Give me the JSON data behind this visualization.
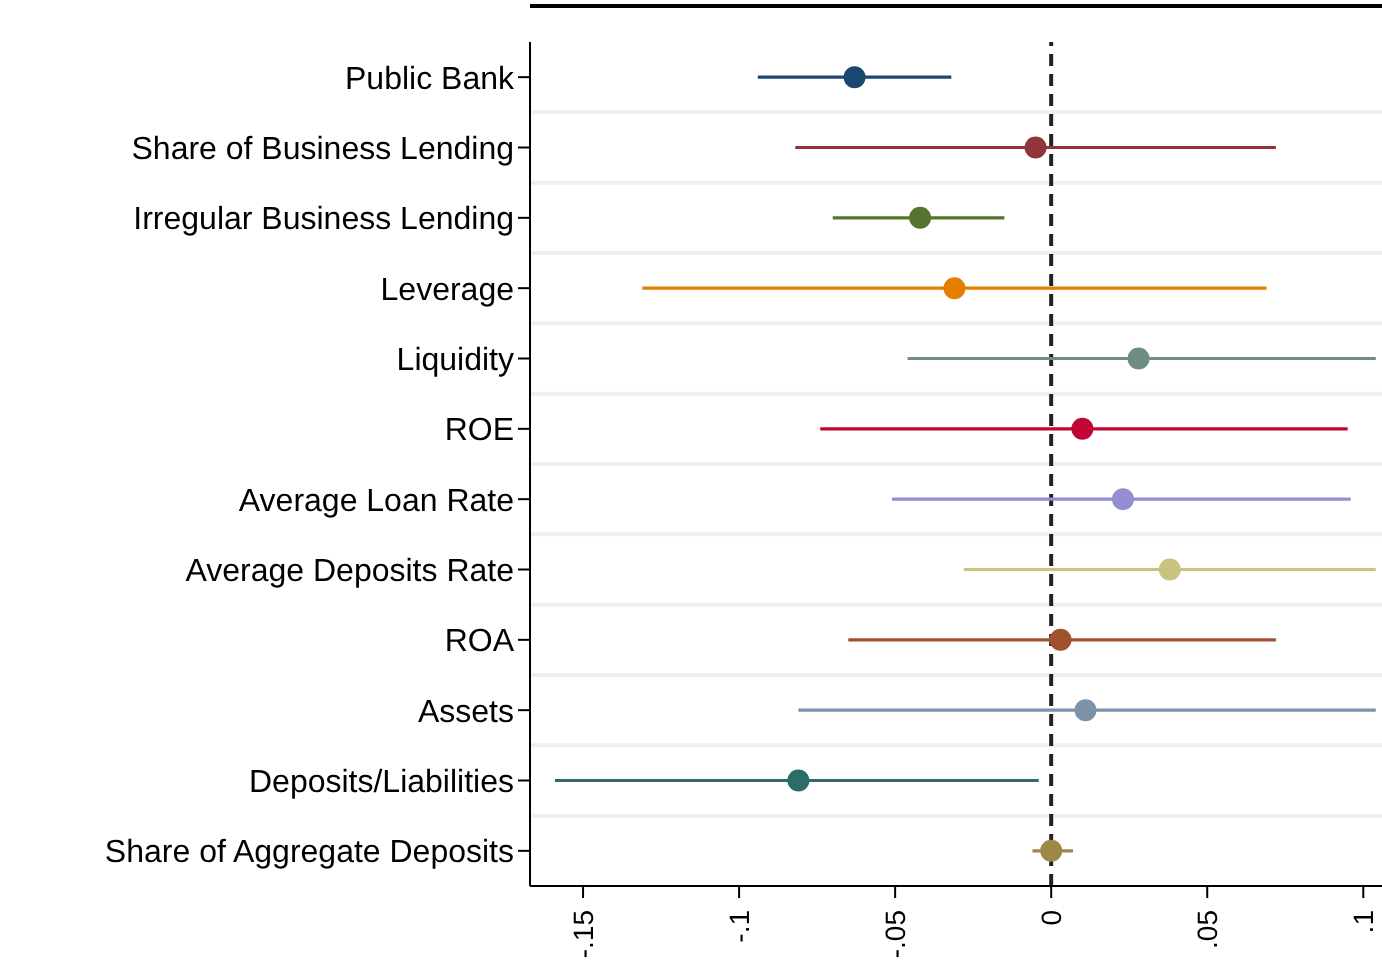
{
  "chart_data": {
    "type": "scatter",
    "orientation": "horizontal",
    "marker": "circle",
    "categories": [
      "Public Bank",
      "Share of Business Lending ",
      "Irregular Business Lending",
      "Leverage",
      "Liquidity",
      "ROE",
      "Average Loan Rate",
      "Average Deposits Rate",
      "ROA",
      "Assets",
      "Deposits/Liabilities",
      "Share of Aggregate Deposits"
    ],
    "values": [
      -0.063,
      -0.005,
      -0.042,
      -0.031,
      0.028,
      0.01,
      0.023,
      0.038,
      0.003,
      0.011,
      -0.081,
      0.0
    ],
    "errors": [
      [
        -0.094,
        -0.032
      ],
      [
        -0.082,
        0.072
      ],
      [
        -0.07,
        -0.015
      ],
      [
        -0.131,
        0.069
      ],
      [
        -0.046,
        0.104
      ],
      [
        -0.074,
        0.095
      ],
      [
        -0.051,
        0.096
      ],
      [
        -0.028,
        0.104
      ],
      [
        -0.065,
        0.072
      ],
      [
        -0.081,
        0.104
      ],
      [
        -0.159,
        -0.004
      ],
      [
        -0.006,
        0.007
      ]
    ],
    "colors": [
      "#1a476f",
      "#90353b",
      "#55752f",
      "#e37e00",
      "#6e8e84",
      "#c10534",
      "#938dd2",
      "#cac27e",
      "#a0522d",
      "#7b92a8",
      "#2d6d66",
      "#9c8847"
    ],
    "xlim": [
      -0.167,
      0.106
    ],
    "xticks": [
      {
        "value": -0.15,
        "label": "-.15"
      },
      {
        "value": -0.1,
        "label": "-.1"
      },
      {
        "value": -0.05,
        "label": "-.05"
      },
      {
        "value": 0,
        "label": "0"
      },
      {
        "value": 0.05,
        "label": ".05"
      },
      {
        "value": 0.1,
        "label": ".1"
      }
    ],
    "ref_lines": [
      {
        "axis": "x",
        "value": 0,
        "color": "#222222",
        "line_style": "dashed"
      }
    ],
    "grid": "y"
  }
}
